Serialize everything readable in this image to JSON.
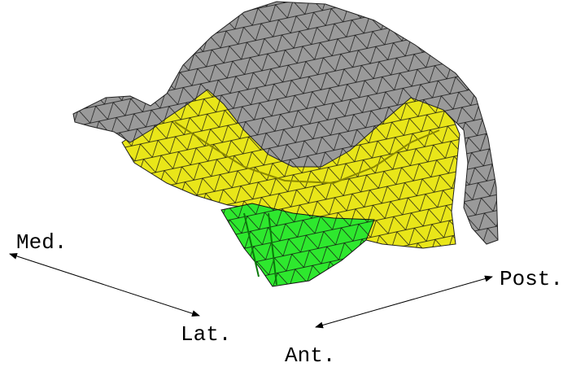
{
  "labels": {
    "medial": "Med.",
    "lateral": "Lat.",
    "anterior": "Ant.",
    "posterior": "Post."
  }
}
